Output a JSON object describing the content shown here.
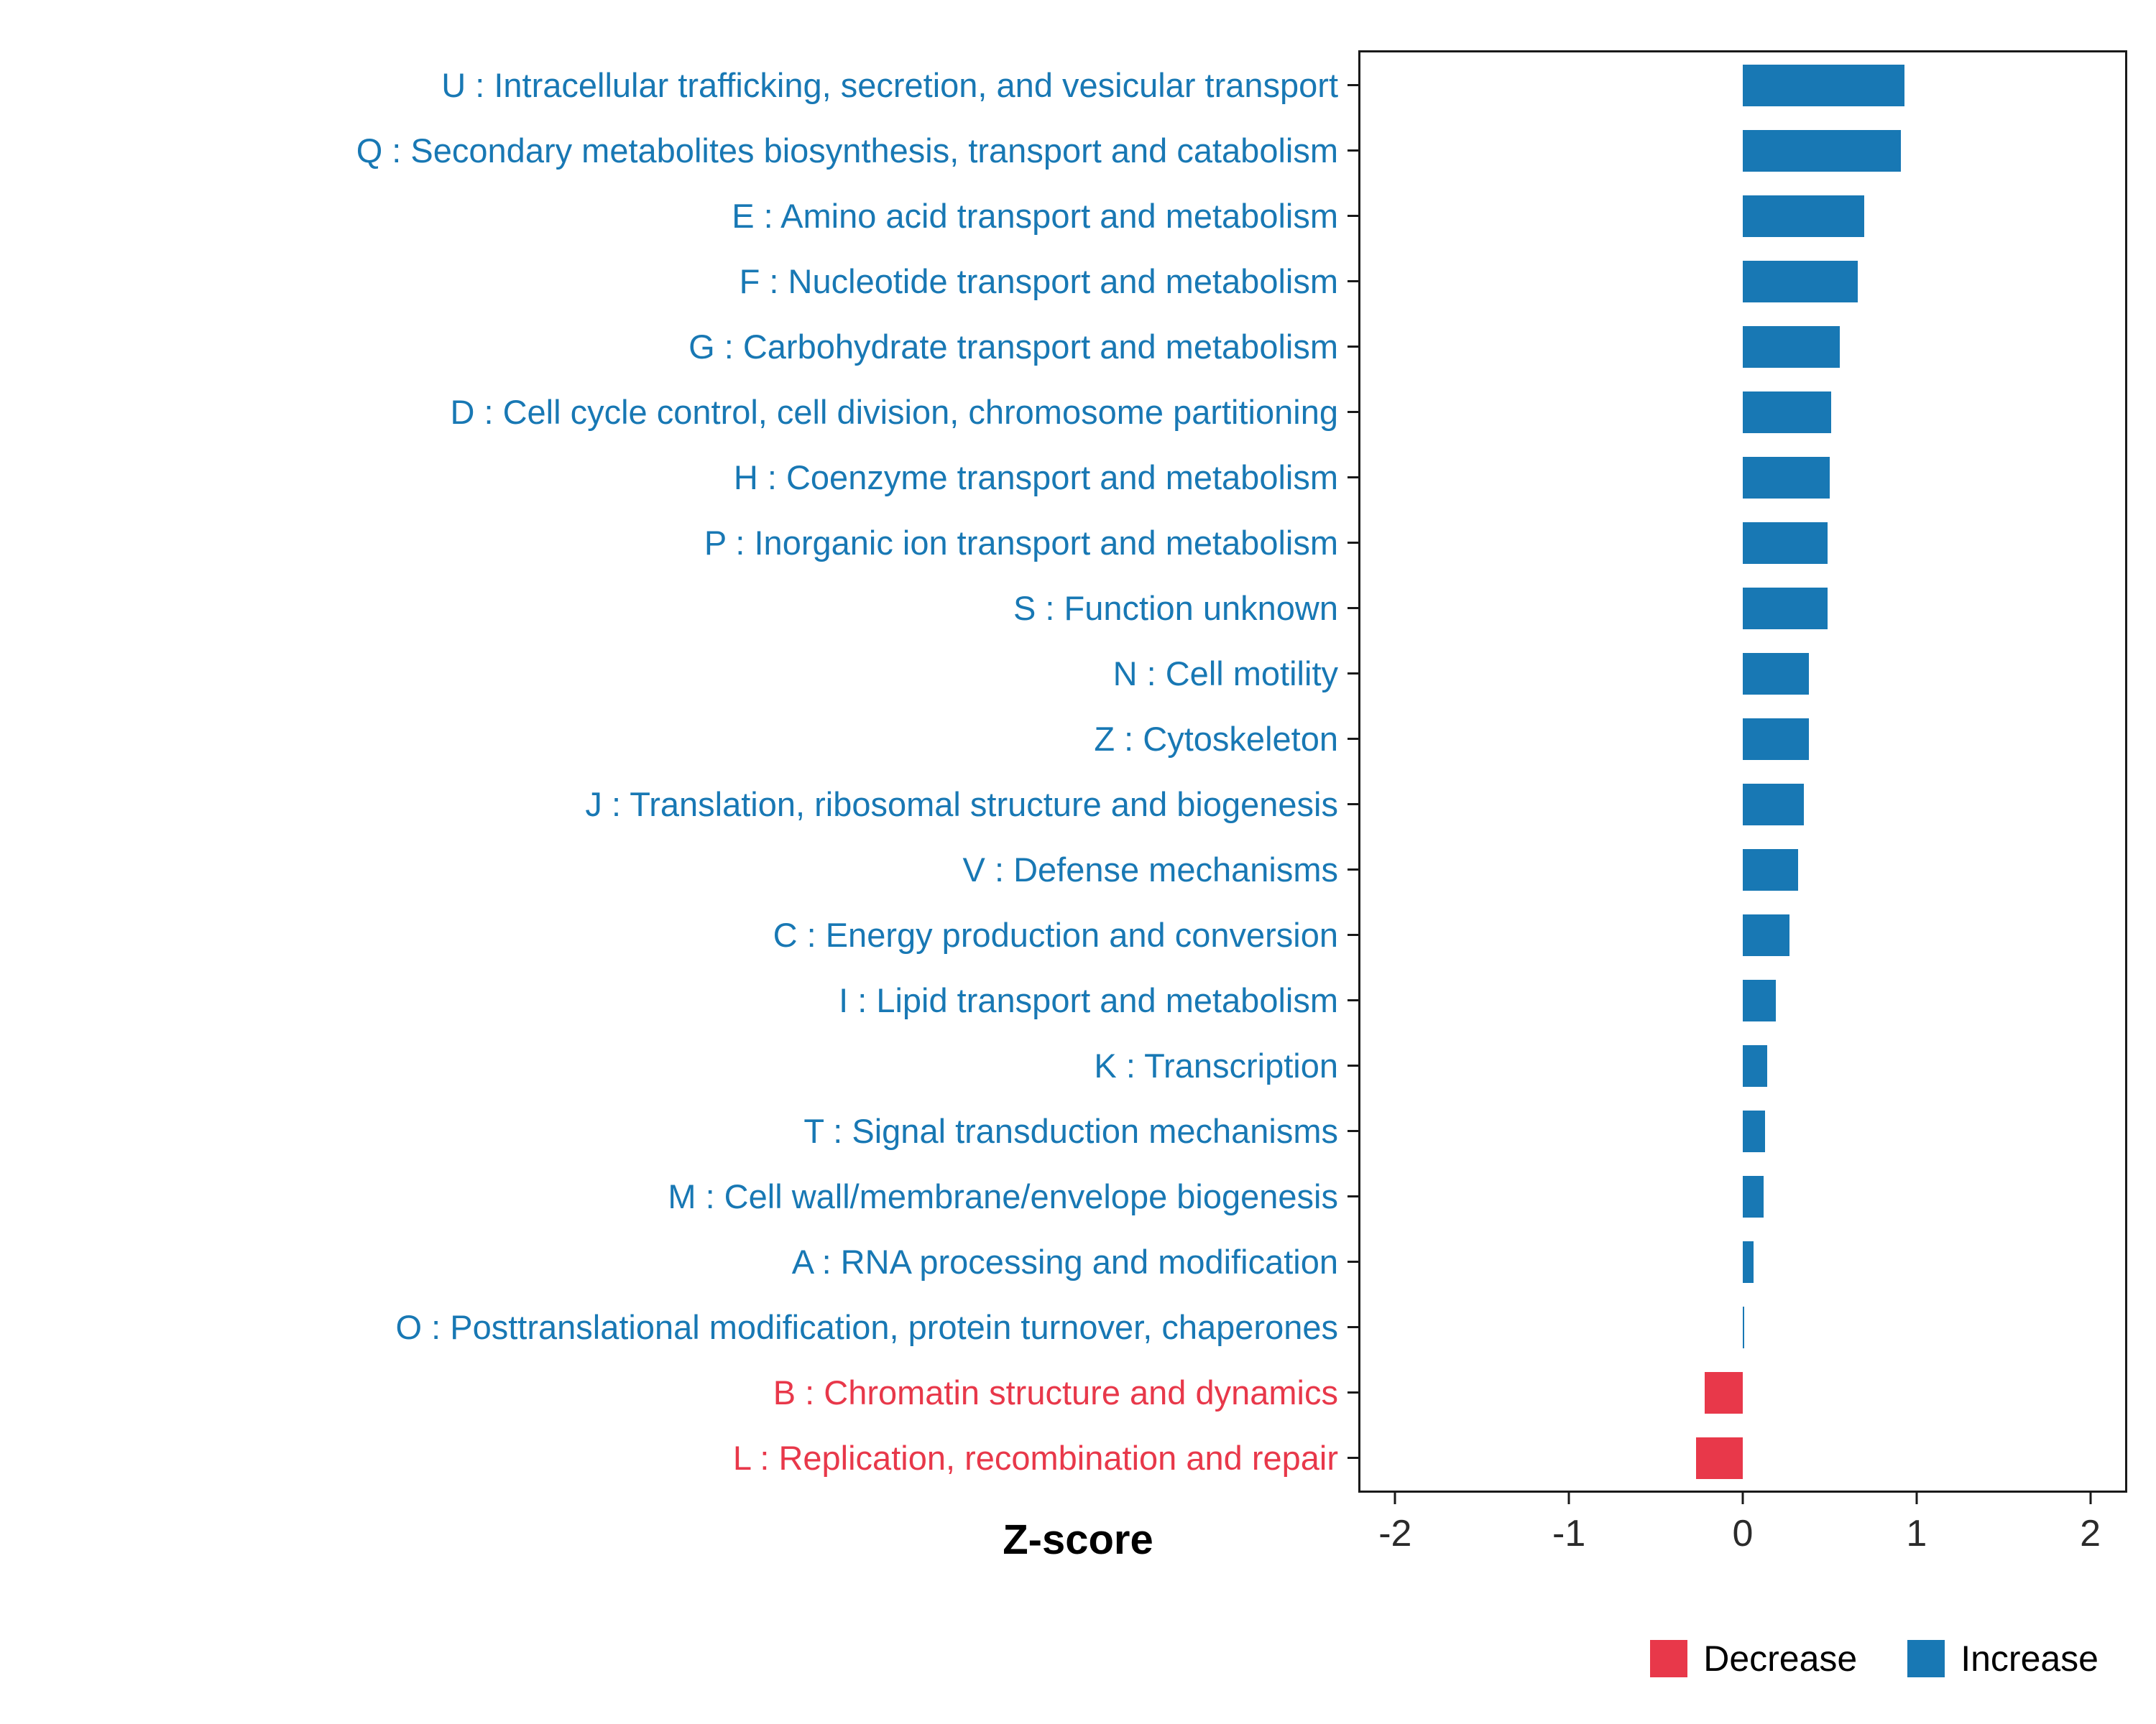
{
  "chart_data": {
    "type": "bar",
    "orientation": "horizontal",
    "title": "",
    "xlabel": "Z-score",
    "ylabel": "",
    "xlim": [
      -2.2,
      2.2
    ],
    "x_ticks": [
      -2,
      -1,
      0,
      1,
      2
    ],
    "grid": false,
    "legend_position": "bottom-right",
    "colors": {
      "increase": "#1878B4",
      "decrease": "#E8384A"
    },
    "legend": [
      {
        "label": "Decrease",
        "color": "#E8384A"
      },
      {
        "label": "Increase",
        "color": "#1878B4"
      }
    ],
    "items": [
      {
        "label": "U : Intracellular trafficking, secretion, and vesicular transport",
        "value": 0.93,
        "direction": "increase"
      },
      {
        "label": "Q : Secondary metabolites biosynthesis, transport and catabolism",
        "value": 0.91,
        "direction": "increase"
      },
      {
        "label": "E : Amino acid transport and metabolism",
        "value": 0.7,
        "direction": "increase"
      },
      {
        "label": "F : Nucleotide transport and metabolism",
        "value": 0.66,
        "direction": "increase"
      },
      {
        "label": "G : Carbohydrate transport and metabolism",
        "value": 0.56,
        "direction": "increase"
      },
      {
        "label": "D : Cell cycle control, cell division, chromosome partitioning",
        "value": 0.51,
        "direction": "increase"
      },
      {
        "label": "H : Coenzyme transport and metabolism",
        "value": 0.5,
        "direction": "increase"
      },
      {
        "label": "P : Inorganic ion transport and metabolism",
        "value": 0.49,
        "direction": "increase"
      },
      {
        "label": "S : Function unknown",
        "value": 0.49,
        "direction": "increase"
      },
      {
        "label": "N : Cell motility",
        "value": 0.38,
        "direction": "increase"
      },
      {
        "label": "Z : Cytoskeleton",
        "value": 0.38,
        "direction": "increase"
      },
      {
        "label": "J : Translation, ribosomal structure and biogenesis",
        "value": 0.35,
        "direction": "increase"
      },
      {
        "label": "V : Defense mechanisms",
        "value": 0.32,
        "direction": "increase"
      },
      {
        "label": "C : Energy production and conversion",
        "value": 0.27,
        "direction": "increase"
      },
      {
        "label": "I : Lipid transport and metabolism",
        "value": 0.19,
        "direction": "increase"
      },
      {
        "label": "K : Transcription",
        "value": 0.14,
        "direction": "increase"
      },
      {
        "label": "T : Signal transduction mechanisms",
        "value": 0.13,
        "direction": "increase"
      },
      {
        "label": "M : Cell wall/membrane/envelope biogenesis",
        "value": 0.12,
        "direction": "increase"
      },
      {
        "label": "A : RNA processing and modification",
        "value": 0.06,
        "direction": "increase"
      },
      {
        "label": "O : Posttranslational modification, protein turnover, chaperones",
        "value": 0.01,
        "direction": "increase"
      },
      {
        "label": "B : Chromatin structure and dynamics",
        "value": -0.22,
        "direction": "decrease"
      },
      {
        "label": "L : Replication, recombination and repair",
        "value": -0.27,
        "direction": "decrease"
      }
    ]
  }
}
